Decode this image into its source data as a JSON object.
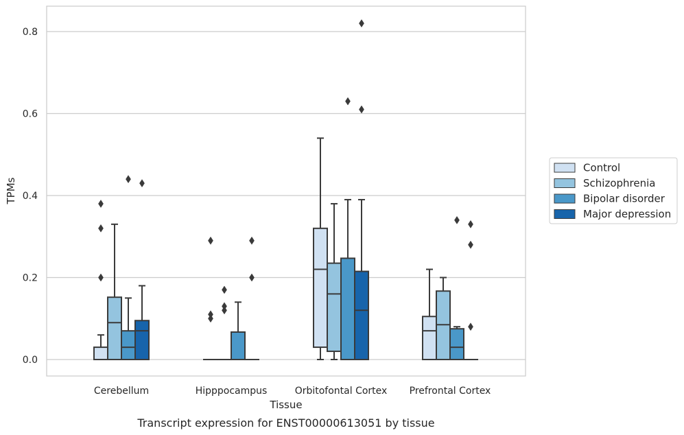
{
  "caption": "Transcript expression for ENST00000613051 by tissue",
  "chart_data": {
    "type": "boxplot",
    "xlabel": "Tissue",
    "ylabel": "TPMs",
    "ylim": [
      -0.04,
      0.862
    ],
    "yticks": [
      0.0,
      0.2,
      0.4,
      0.6,
      0.8
    ],
    "ytick_labels": [
      "0.0",
      "0.2",
      "0.4",
      "0.6",
      "0.8"
    ],
    "grid": "horizontal",
    "legend_position": "right",
    "categories": [
      "Cerebellum",
      "Hipppocampus",
      "Orbitofontal Cortex",
      "Prefrontal Cortex"
    ],
    "series": [
      {
        "name": "Control",
        "color": "#d0e1f2",
        "boxes": [
          {
            "q1": 0.0,
            "median": 0.0,
            "q3": 0.03,
            "whisker_low": 0.0,
            "whisker_high": 0.06,
            "outliers": [
              0.38,
              0.32,
              0.2
            ]
          },
          {
            "q1": 0.0,
            "median": 0.0,
            "q3": 0.0,
            "whisker_low": 0.0,
            "whisker_high": 0.0,
            "outliers": [
              0.29,
              0.11,
              0.1
            ]
          },
          {
            "q1": 0.03,
            "median": 0.22,
            "q3": 0.32,
            "whisker_low": 0.0,
            "whisker_high": 0.54,
            "outliers": []
          },
          {
            "q1": 0.0,
            "median": 0.07,
            "q3": 0.105,
            "whisker_low": 0.0,
            "whisker_high": 0.22,
            "outliers": []
          }
        ]
      },
      {
        "name": "Schizophrenia",
        "color": "#94c4df",
        "boxes": [
          {
            "q1": 0.0,
            "median": 0.09,
            "q3": 0.152,
            "whisker_low": 0.0,
            "whisker_high": 0.33,
            "outliers": []
          },
          {
            "q1": 0.0,
            "median": 0.0,
            "q3": 0.0,
            "whisker_low": 0.0,
            "whisker_high": 0.0,
            "outliers": [
              0.17,
              0.13,
              0.12
            ]
          },
          {
            "q1": 0.02,
            "median": 0.16,
            "q3": 0.235,
            "whisker_low": 0.0,
            "whisker_high": 0.38,
            "outliers": []
          },
          {
            "q1": 0.0,
            "median": 0.085,
            "q3": 0.167,
            "whisker_low": 0.0,
            "whisker_high": 0.2,
            "outliers": []
          }
        ]
      },
      {
        "name": "Bipolar disorder",
        "color": "#4a98c9",
        "boxes": [
          {
            "q1": 0.0,
            "median": 0.03,
            "q3": 0.07,
            "whisker_low": 0.0,
            "whisker_high": 0.15,
            "outliers": [
              0.44
            ]
          },
          {
            "q1": 0.0,
            "median": 0.0,
            "q3": 0.067,
            "whisker_low": 0.0,
            "whisker_high": 0.14,
            "outliers": []
          },
          {
            "q1": 0.0,
            "median": 0.0,
            "q3": 0.247,
            "whisker_low": 0.0,
            "whisker_high": 0.39,
            "outliers": [
              0.63
            ]
          },
          {
            "q1": 0.0,
            "median": 0.03,
            "q3": 0.075,
            "whisker_low": 0.0,
            "whisker_high": 0.08,
            "outliers": [
              0.34
            ]
          }
        ]
      },
      {
        "name": "Major depression",
        "color": "#1764ab",
        "boxes": [
          {
            "q1": 0.0,
            "median": 0.07,
            "q3": 0.095,
            "whisker_low": 0.0,
            "whisker_high": 0.18,
            "outliers": [
              0.43
            ]
          },
          {
            "q1": 0.0,
            "median": 0.0,
            "q3": 0.0,
            "whisker_low": 0.0,
            "whisker_high": 0.0,
            "outliers": [
              0.29,
              0.2
            ]
          },
          {
            "q1": 0.0,
            "median": 0.12,
            "q3": 0.215,
            "whisker_low": 0.0,
            "whisker_high": 0.39,
            "outliers": [
              0.82,
              0.61
            ]
          },
          {
            "q1": 0.0,
            "median": 0.0,
            "q3": 0.0,
            "whisker_low": 0.0,
            "whisker_high": 0.0,
            "outliers": [
              0.33,
              0.28,
              0.08
            ]
          }
        ]
      }
    ]
  }
}
